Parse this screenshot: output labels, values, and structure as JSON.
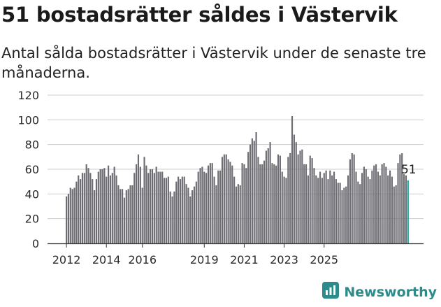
{
  "title": "51 bostadsrätter såldes i Västervik",
  "subtitle": "Antal sålda bostadsrätter i Västervik under de senaste tre månaderna.",
  "brand": {
    "name": "Newsworthy",
    "icon": "newsworthy-logo-icon"
  },
  "colors": {
    "bar": "#6d6c72",
    "highlight": "#1b9e9e",
    "grid": "#cccccc",
    "axis": "#333333"
  },
  "chart_data": {
    "type": "bar",
    "ylim": [
      0,
      120
    ],
    "yticks": [
      "0",
      "20",
      "40",
      "60",
      "80",
      "100",
      "120"
    ],
    "xticks": [
      {
        "label": "2012",
        "at": 0
      },
      {
        "label": "2014",
        "at": 20
      },
      {
        "label": "2016",
        "at": 38
      },
      {
        "label": "2019",
        "at": 69
      },
      {
        "label": "2021",
        "at": 89
      },
      {
        "label": "2023",
        "at": 109
      },
      {
        "label": "2025",
        "at": 129
      }
    ],
    "values": [
      38,
      40,
      45,
      44,
      45,
      50,
      55,
      52,
      57,
      57,
      64,
      61,
      57,
      52,
      43,
      52,
      58,
      60,
      60,
      61,
      54,
      63,
      55,
      57,
      62,
      55,
      47,
      44,
      44,
      37,
      43,
      44,
      47,
      47,
      57,
      64,
      72,
      62,
      45,
      70,
      63,
      57,
      60,
      60,
      57,
      62,
      58,
      58,
      58,
      53,
      53,
      54,
      42,
      38,
      42,
      50,
      54,
      52,
      54,
      54,
      48,
      45,
      38,
      43,
      46,
      50,
      58,
      61,
      62,
      58,
      57,
      63,
      65,
      65,
      54,
      47,
      59,
      59,
      70,
      72,
      72,
      68,
      66,
      63,
      54,
      46,
      48,
      47,
      65,
      64,
      61,
      74,
      80,
      85,
      83,
      90,
      70,
      64,
      64,
      67,
      75,
      77,
      82,
      65,
      64,
      63,
      72,
      71,
      58,
      54,
      53,
      70,
      73,
      103,
      88,
      82,
      72,
      75,
      76,
      64,
      64,
      55,
      71,
      69,
      61,
      55,
      53,
      58,
      53,
      57,
      59,
      52,
      59,
      55,
      58,
      52,
      49,
      49,
      43,
      45,
      46,
      55,
      68,
      73,
      72,
      58,
      50,
      48,
      57,
      62,
      60,
      54,
      52,
      59,
      63,
      64,
      58,
      55,
      64,
      65,
      62,
      55,
      59,
      54,
      46,
      47,
      65,
      72,
      73,
      56,
      55,
      51
    ],
    "highlight_index": 171,
    "annotation": "51"
  }
}
